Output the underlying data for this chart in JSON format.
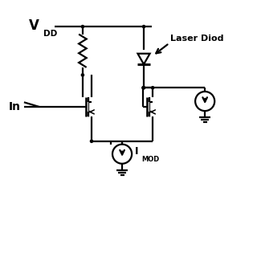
{
  "bg_color": "#ffffff",
  "line_color": "#000000",
  "figsize": [
    3.2,
    3.2
  ],
  "dpi": 100,
  "vdd_label": "V",
  "vdd_sub": "DD",
  "in_label": "In",
  "imod_label": "I",
  "imod_sub": "MOD",
  "laser_label": "Laser Diod",
  "lw": 1.6,
  "dot_r": 0.05
}
